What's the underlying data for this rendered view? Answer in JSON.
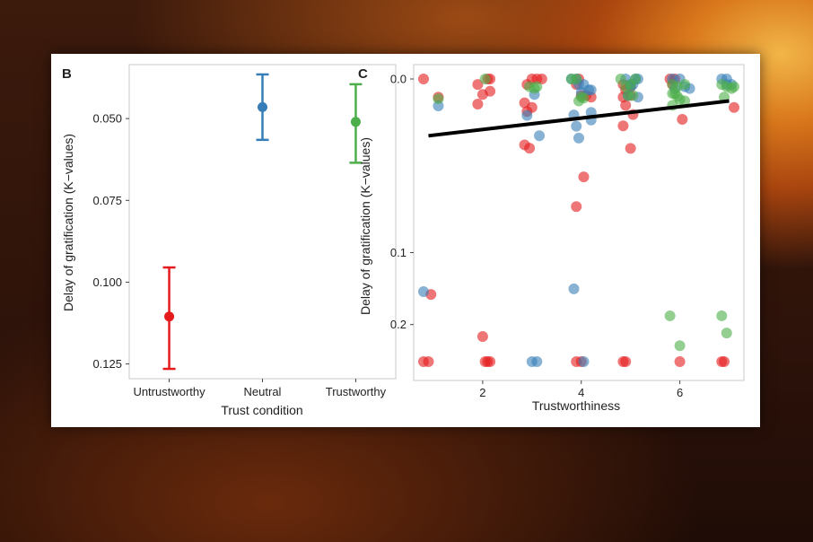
{
  "colors": {
    "red": "#e41a1c",
    "blue": "#377eb8",
    "green": "#4daf4a",
    "panel_border": "#c8c8c8"
  },
  "chart_data": [
    {
      "panel_label": "B",
      "type": "scatter",
      "subtype": "point-with-errorbars",
      "xlabel": "Trust condition",
      "ylabel": "Delay of gratification (K−values)",
      "y_reversed": true,
      "ylim": [
        0.0335,
        0.1295
      ],
      "yticks": [
        0.05,
        0.075,
        0.1,
        0.125
      ],
      "ytick_labels": [
        "0.050",
        "0.075",
        "0.100",
        "0.125"
      ],
      "categories": [
        "Untrustworthy",
        "Neutral",
        "Trustworthy"
      ],
      "means": [
        0.1105,
        0.0465,
        0.051
      ],
      "lower": [
        0.0955,
        0.0365,
        0.0395
      ],
      "upper": [
        0.1265,
        0.0565,
        0.0635
      ],
      "colors": [
        "#e41a1c",
        "#377eb8",
        "#4daf4a"
      ],
      "grid": false
    },
    {
      "panel_label": "C",
      "type": "scatter",
      "xlabel": "Trustworthiness",
      "ylabel": "Delay of gratification (K−values)",
      "y_reversed": true,
      "y_scale": "sqrt",
      "xlim": [
        0.6,
        7.3
      ],
      "xticks": [
        2,
        4,
        6
      ],
      "xtick_labels": [
        "2",
        "4",
        "6"
      ],
      "ylim": [
        0,
        0.27
      ],
      "yticks": [
        0.0,
        0.1,
        0.2
      ],
      "ytick_labels": [
        "0.0",
        "0.1",
        "0.2"
      ],
      "grid": false,
      "trendline": {
        "x": [
          0.9,
          7.0
        ],
        "y": [
          0.0107,
          0.0016
        ]
      },
      "series": [
        {
          "color": "#e41a1c",
          "points": [
            [
              0.8,
              0.0
            ],
            [
              1.1,
              0.0011
            ],
            [
              0.8,
              0.265
            ],
            [
              0.9,
              0.265
            ],
            [
              0.95,
              0.154
            ],
            [
              1.9,
              0.0001
            ],
            [
              2.1,
              0.0
            ],
            [
              2.15,
              0.0
            ],
            [
              1.9,
              0.0021
            ],
            [
              2.0,
              0.0008
            ],
            [
              2.15,
              0.0005
            ],
            [
              2.0,
              0.22
            ],
            [
              2.05,
              0.265
            ],
            [
              2.1,
              0.265
            ],
            [
              2.15,
              0.265
            ],
            [
              3.0,
              0.0
            ],
            [
              3.1,
              0.0
            ],
            [
              3.2,
              0.0
            ],
            [
              2.9,
              0.0001
            ],
            [
              2.85,
              0.0019
            ],
            [
              3.0,
              0.0027
            ],
            [
              2.9,
              0.0035
            ],
            [
              2.85,
              0.0144
            ],
            [
              2.95,
              0.0159
            ],
            [
              3.95,
              0.0
            ],
            [
              3.9,
              0.0001
            ],
            [
              4.1,
              0.0009
            ],
            [
              4.2,
              0.0011
            ],
            [
              4.0,
              0.0009
            ],
            [
              4.05,
              0.0318
            ],
            [
              3.9,
              0.054
            ],
            [
              3.9,
              0.265
            ],
            [
              4.0,
              0.265
            ],
            [
              4.85,
              0.0001
            ],
            [
              4.9,
              0.0004
            ],
            [
              5.0,
              0.0009
            ],
            [
              4.85,
              0.0011
            ],
            [
              4.9,
              0.0023
            ],
            [
              5.05,
              0.0042
            ],
            [
              4.85,
              0.0073
            ],
            [
              5.0,
              0.016
            ],
            [
              4.85,
              0.265
            ],
            [
              4.9,
              0.265
            ],
            [
              5.0,
              0.0002
            ],
            [
              5.8,
              0.0
            ],
            [
              5.85,
              0.0001
            ],
            [
              5.9,
              0.0
            ],
            [
              6.05,
              0.0054
            ],
            [
              6.0,
              0.265
            ],
            [
              6.85,
              0.265
            ],
            [
              6.9,
              0.265
            ],
            [
              7.1,
              0.0027
            ]
          ]
        },
        {
          "color": "#377eb8",
          "points": [
            [
              1.1,
              0.0024
            ],
            [
              0.8,
              0.15
            ],
            [
              2.9,
              0.0044
            ],
            [
              3.05,
              0.0008
            ],
            [
              3.0,
              0.265
            ],
            [
              3.1,
              0.265
            ],
            [
              3.15,
              0.0107
            ],
            [
              3.8,
              0.0
            ],
            [
              3.9,
              0.0
            ],
            [
              3.95,
              0.0001
            ],
            [
              4.05,
              0.0001
            ],
            [
              4.2,
              0.0004
            ],
            [
              4.15,
              0.0004
            ],
            [
              4.0,
              0.0006
            ],
            [
              3.85,
              0.0043
            ],
            [
              4.2,
              0.0037
            ],
            [
              4.2,
              0.0056
            ],
            [
              3.9,
              0.0074
            ],
            [
              3.95,
              0.0116
            ],
            [
              3.85,
              0.146
            ],
            [
              4.05,
              0.265
            ],
            [
              4.9,
              0.0
            ],
            [
              5.0,
              0.0001
            ],
            [
              5.1,
              0.0
            ],
            [
              5.15,
              0.0
            ],
            [
              5.05,
              0.0001
            ],
            [
              5.0,
              0.0002
            ],
            [
              5.15,
              0.0011
            ],
            [
              4.95,
              0.0009
            ],
            [
              5.85,
              0.0
            ],
            [
              6.0,
              0.0
            ],
            [
              6.1,
              0.0002
            ],
            [
              5.9,
              0.0003
            ],
            [
              6.2,
              0.0003
            ],
            [
              6.85,
              0.0
            ],
            [
              6.95,
              0.0
            ],
            [
              7.05,
              0.0001
            ],
            [
              6.95,
              0.0001
            ]
          ]
        },
        {
          "color": "#4daf4a",
          "points": [
            [
              1.1,
              0.0013
            ],
            [
              2.05,
              0.0
            ],
            [
              2.95,
              0.0002
            ],
            [
              3.05,
              0.0003
            ],
            [
              3.1,
              0.0002
            ],
            [
              3.8,
              0.0
            ],
            [
              3.9,
              0.0
            ],
            [
              4.0,
              0.0011
            ],
            [
              3.95,
              0.0016
            ],
            [
              4.05,
              0.0012
            ],
            [
              4.8,
              0.0
            ],
            [
              4.9,
              0.0002
            ],
            [
              5.0,
              0.0001
            ],
            [
              5.1,
              0.0
            ],
            [
              4.95,
              0.0009
            ],
            [
              5.05,
              0.0009
            ],
            [
              5.85,
              0.0001
            ],
            [
              5.95,
              0.0002
            ],
            [
              6.1,
              0.0001
            ],
            [
              5.9,
              0.0007
            ],
            [
              5.85,
              0.0007
            ],
            [
              6.0,
              0.0014
            ],
            [
              6.1,
              0.0016
            ],
            [
              5.95,
              0.001
            ],
            [
              5.85,
              0.0023
            ],
            [
              5.8,
              0.186
            ],
            [
              6.0,
              0.236
            ],
            [
              6.85,
              0.0001
            ],
            [
              6.95,
              0.0002
            ],
            [
              7.05,
              0.0003
            ],
            [
              7.1,
              0.0002
            ],
            [
              6.9,
              0.0011
            ],
            [
              6.85,
              0.186
            ],
            [
              6.95,
              0.214
            ]
          ]
        }
      ]
    }
  ]
}
